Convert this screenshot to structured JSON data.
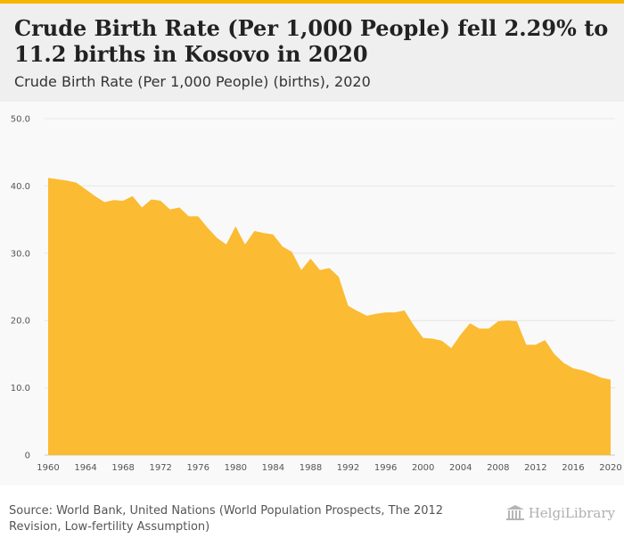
{
  "header": {
    "title": "Crude Birth Rate (Per 1,000 People) fell 2.29% to 11.2 births in Kosovo in 2020",
    "subtitle": "Crude Birth Rate (Per 1,000 People) (births), 2020"
  },
  "footer": {
    "source_label": "Source:",
    "source_text": "World Bank, United Nations (World Population Prospects, The 2012 Revision, Low-fertility Assumption)",
    "logo_text": "HelgiLibrary"
  },
  "colors": {
    "accent": "#f7b500",
    "area_fill": "#fbbb32",
    "header_bg": "#efefef",
    "plot_bg": "#f9f9f9",
    "grid": "#e6e6e6"
  },
  "chart_data": {
    "type": "area",
    "x": [
      1960,
      1961,
      1962,
      1963,
      1964,
      1965,
      1966,
      1967,
      1968,
      1969,
      1970,
      1971,
      1972,
      1973,
      1974,
      1975,
      1976,
      1977,
      1978,
      1979,
      1980,
      1981,
      1982,
      1983,
      1984,
      1985,
      1986,
      1987,
      1988,
      1989,
      1990,
      1991,
      1992,
      1993,
      1994,
      1995,
      1996,
      1997,
      1998,
      1999,
      2000,
      2001,
      2002,
      2003,
      2004,
      2005,
      2006,
      2007,
      2008,
      2009,
      2010,
      2011,
      2012,
      2013,
      2014,
      2015,
      2016,
      2017,
      2018,
      2019,
      2020
    ],
    "values": [
      41.2,
      41.0,
      40.8,
      40.5,
      39.5,
      38.5,
      37.6,
      37.9,
      37.8,
      38.5,
      36.8,
      38.0,
      37.8,
      36.5,
      36.8,
      35.5,
      35.5,
      33.8,
      32.3,
      31.3,
      34.0,
      31.3,
      33.3,
      33.0,
      32.8,
      31.0,
      30.2,
      27.5,
      29.2,
      27.5,
      27.8,
      26.5,
      22.2,
      21.4,
      20.7,
      21.0,
      21.2,
      21.2,
      21.5,
      19.3,
      17.4,
      17.3,
      17.0,
      15.9,
      17.9,
      19.6,
      18.8,
      18.8,
      19.9,
      20.0,
      19.9,
      16.4,
      16.4,
      17.1,
      15.0,
      13.7,
      12.9,
      12.6,
      12.1,
      11.5,
      11.2
    ],
    "xticks": [
      "1960",
      "1964",
      "1968",
      "1972",
      "1976",
      "1980",
      "1984",
      "1988",
      "1992",
      "1996",
      "2000",
      "2004",
      "2008",
      "2012",
      "2016",
      "2020"
    ],
    "yticks": [
      "0",
      "10.0",
      "20.0",
      "30.0",
      "40.0",
      "50.0"
    ],
    "xlim": [
      1960,
      2020
    ],
    "ylim": [
      0,
      50
    ],
    "grid": true,
    "legend": "none"
  }
}
